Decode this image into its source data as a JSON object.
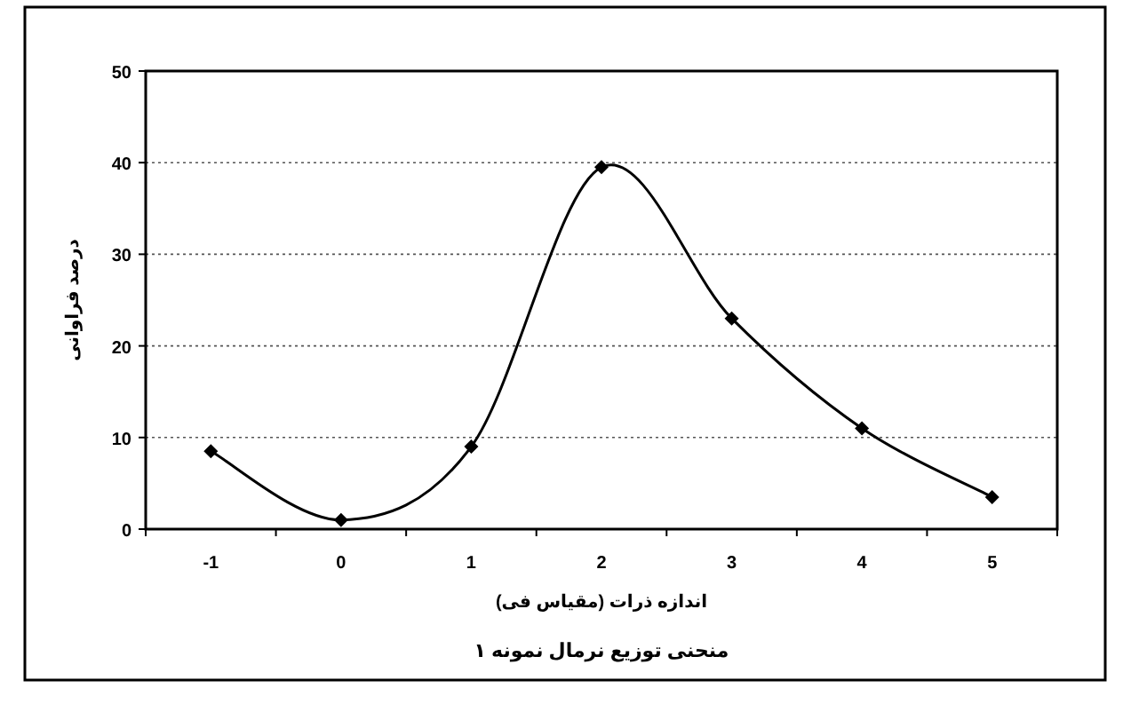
{
  "chart_data": {
    "type": "line",
    "title": "منحنی توزیع نرمال نمونه ۱",
    "xlabel": "اندازه ذرات (مقیاس فی)",
    "ylabel": "درصد فراوانی",
    "categories": [
      "-1",
      "0",
      "1",
      "2",
      "3",
      "4",
      "5"
    ],
    "values": [
      8.5,
      1,
      9,
      39.5,
      23,
      11,
      3.5
    ],
    "color": "#000000",
    "ylim": [
      0,
      50
    ],
    "yticks": [
      0,
      10,
      20,
      30,
      40,
      50
    ],
    "grid": "y",
    "marker": "diamond",
    "line_style": "solid"
  }
}
